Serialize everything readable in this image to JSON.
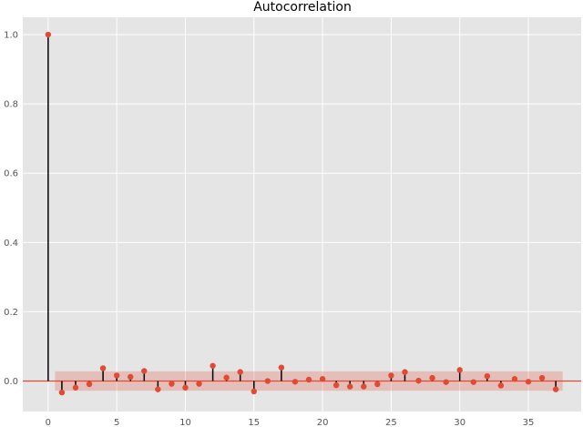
{
  "chart_data": {
    "type": "stem",
    "title": "Autocorrelation",
    "xlabel": "",
    "ylabel": "",
    "xlim": [
      -1.85,
      38.85
    ],
    "ylim": [
      -0.088,
      1.05
    ],
    "xticks": [
      0,
      5,
      10,
      15,
      20,
      25,
      30,
      35
    ],
    "yticks": [
      0.0,
      0.2,
      0.4,
      0.6,
      0.8,
      1.0
    ],
    "xtick_labels": [
      "0",
      "5",
      "10",
      "15",
      "20",
      "25",
      "30",
      "35"
    ],
    "ytick_labels": [
      "0.0",
      "0.2",
      "0.4",
      "0.6",
      "0.8",
      "1.0"
    ],
    "grid": true,
    "lags": [
      0,
      1,
      2,
      3,
      4,
      5,
      6,
      7,
      8,
      9,
      10,
      11,
      12,
      13,
      14,
      15,
      16,
      17,
      18,
      19,
      20,
      21,
      22,
      23,
      24,
      25,
      26,
      27,
      28,
      29,
      30,
      31,
      32,
      33,
      34,
      35,
      36,
      37
    ],
    "values": [
      1.0,
      -0.033,
      -0.019,
      -0.009,
      0.037,
      0.016,
      0.012,
      0.029,
      -0.024,
      -0.008,
      -0.019,
      -0.008,
      0.044,
      0.01,
      0.026,
      -0.03,
      0.0,
      0.039,
      -0.002,
      0.004,
      0.006,
      -0.012,
      -0.016,
      -0.016,
      -0.009,
      0.016,
      0.026,
      0.001,
      0.009,
      -0.003,
      0.032,
      -0.003,
      0.014,
      -0.013,
      0.006,
      -0.002,
      0.009,
      -0.024
    ],
    "confidence_band": {
      "x_range": [
        0.5,
        37.5
      ],
      "lower": -0.028,
      "upper": 0.028
    },
    "colors": {
      "background": "#e5e5e5",
      "grid": "#ffffff",
      "stem": "#000000",
      "marker": "#e24a33",
      "band": "#e24a33",
      "zero_line": "#e24a33"
    }
  }
}
